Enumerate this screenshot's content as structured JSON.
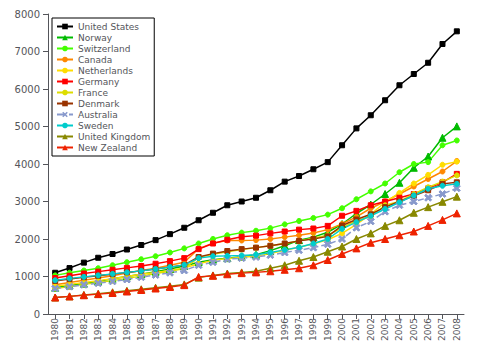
{
  "chart_data": {
    "type": "line",
    "x": [
      1980,
      1981,
      1982,
      1983,
      1984,
      1985,
      1986,
      1987,
      1988,
      1989,
      1990,
      1991,
      1992,
      1993,
      1994,
      1995,
      1996,
      1997,
      1998,
      1999,
      2000,
      2001,
      2002,
      2003,
      2004,
      2005,
      2006,
      2007,
      2008
    ],
    "xlim": [
      1979.5,
      2008.5
    ],
    "xticks": [
      1980,
      1981,
      1982,
      1983,
      1984,
      1985,
      1986,
      1987,
      1988,
      1989,
      1990,
      1991,
      1992,
      1993,
      1994,
      1995,
      1996,
      1997,
      1998,
      1999,
      2000,
      2001,
      2002,
      2003,
      2004,
      2005,
      2006,
      2007,
      2008
    ],
    "ylim": [
      0,
      8000
    ],
    "yticks": [
      0,
      1000,
      2000,
      3000,
      4000,
      5000,
      6000,
      7000,
      8000
    ],
    "grid": false,
    "legend": "upper left",
    "series": [
      {
        "name": "United States",
        "color": "#000000",
        "marker": "square",
        "line_style": "solid",
        "values": [
          1100,
          1225,
          1370,
          1500,
          1600,
          1720,
          1840,
          1970,
          2130,
          2300,
          2500,
          2700,
          2900,
          3000,
          3100,
          3300,
          3530,
          3680,
          3860,
          4050,
          4500,
          4950,
          5300,
          5700,
          6100,
          6400,
          6700,
          7200,
          7538
        ]
      },
      {
        "name": "Norway",
        "color": "#00bb00",
        "marker": "triangle",
        "line_style": "solid",
        "values": [
          700,
          760,
          810,
          870,
          940,
          1000,
          1060,
          1130,
          1200,
          1280,
          1380,
          1450,
          1490,
          1530,
          1580,
          1690,
          1820,
          1970,
          2050,
          2180,
          2400,
          2680,
          2920,
          3200,
          3500,
          3900,
          4200,
          4700,
          5003
        ]
      },
      {
        "name": "Switzerland",
        "color": "#44ff00",
        "marker": "circle",
        "line_style": "solid",
        "values": [
          1030,
          1100,
          1160,
          1220,
          1300,
          1380,
          1460,
          1540,
          1640,
          1750,
          1880,
          2000,
          2100,
          2170,
          2220,
          2290,
          2390,
          2480,
          2560,
          2650,
          2820,
          3060,
          3270,
          3480,
          3780,
          4000,
          4050,
          4500,
          4627
        ]
      },
      {
        "name": "Canada",
        "color": "#ff8800",
        "marker": "circle",
        "line_style": "solid",
        "values": [
          780,
          840,
          900,
          960,
          1020,
          1090,
          1160,
          1220,
          1300,
          1380,
          1740,
          1890,
          1960,
          1960,
          1970,
          2000,
          2050,
          2100,
          2160,
          2250,
          2400,
          2590,
          2820,
          3000,
          3200,
          3400,
          3600,
          3800,
          4079
        ]
      },
      {
        "name": "Netherlands",
        "color": "#ffdd00",
        "marker": "circle",
        "line_style": "solid",
        "values": [
          740,
          790,
          840,
          890,
          940,
          1000,
          1060,
          1110,
          1160,
          1230,
          1340,
          1430,
          1480,
          1510,
          1540,
          1610,
          1700,
          1780,
          1870,
          1980,
          2150,
          2390,
          2660,
          2980,
          3230,
          3480,
          3710,
          3980,
          4063
        ]
      },
      {
        "name": "Germany",
        "color": "#ff0000",
        "marker": "square",
        "line_style": "solid",
        "values": [
          960,
          1020,
          1080,
          1130,
          1180,
          1230,
          1280,
          1340,
          1410,
          1490,
          1730,
          1880,
          1980,
          2060,
          2090,
          2150,
          2200,
          2250,
          2280,
          2350,
          2620,
          2750,
          2900,
          3000,
          3100,
          3200,
          3350,
          3510,
          3737
        ]
      },
      {
        "name": "France",
        "color": "#dddd00",
        "marker": "circle",
        "line_style": "solid",
        "values": [
          680,
          730,
          790,
          840,
          890,
          950,
          1010,
          1080,
          1140,
          1210,
          1510,
          1590,
          1660,
          1720,
          1770,
          1820,
          1880,
          1950,
          2020,
          2100,
          2300,
          2490,
          2600,
          2900,
          3000,
          3200,
          3380,
          3530,
          3696
        ]
      },
      {
        "name": "Denmark",
        "color": "#993300",
        "marker": "square",
        "line_style": "solid",
        "values": [
          880,
          930,
          980,
          1020,
          1060,
          1110,
          1150,
          1200,
          1250,
          1310,
          1520,
          1610,
          1680,
          1730,
          1770,
          1820,
          1880,
          1950,
          2000,
          2070,
          2360,
          2520,
          2660,
          2850,
          3000,
          3150,
          3300,
          3470,
          3512
        ]
      },
      {
        "name": "Australia",
        "color": "#8899cc",
        "marker": "x",
        "line_style": "dashed",
        "values": [
          680,
          730,
          780,
          820,
          870,
          920,
          980,
          1040,
          1100,
          1160,
          1300,
          1380,
          1460,
          1490,
          1520,
          1570,
          1640,
          1700,
          1770,
          1860,
          2000,
          2300,
          2470,
          2730,
          2900,
          3000,
          3100,
          3200,
          3353
        ]
      },
      {
        "name": "Sweden",
        "color": "#00cccc",
        "marker": "circle",
        "line_style": "solid",
        "values": [
          900,
          950,
          990,
          1030,
          1070,
          1110,
          1150,
          1200,
          1250,
          1310,
          1490,
          1540,
          1550,
          1560,
          1580,
          1640,
          1710,
          1780,
          1880,
          2000,
          2270,
          2450,
          2620,
          2800,
          2980,
          3160,
          3340,
          3420,
          3470
        ]
      },
      {
        "name": "United Kingdom",
        "color": "#888800",
        "marker": "triangle",
        "line_style": "solid",
        "values": [
          440,
          470,
          510,
          540,
          580,
          620,
          660,
          700,
          740,
          790,
          970,
          1030,
          1080,
          1110,
          1140,
          1220,
          1300,
          1420,
          1520,
          1660,
          1800,
          2000,
          2150,
          2350,
          2500,
          2700,
          2850,
          2992,
          3129
        ]
      },
      {
        "name": "New Zealand",
        "color": "#ee2200",
        "marker": "triangle",
        "line_style": "solid",
        "values": [
          440,
          470,
          500,
          530,
          560,
          600,
          640,
          680,
          720,
          770,
          990,
          1020,
          1060,
          1090,
          1110,
          1140,
          1180,
          1220,
          1300,
          1440,
          1600,
          1750,
          1900,
          2000,
          2100,
          2200,
          2350,
          2510,
          2683
        ]
      }
    ]
  }
}
